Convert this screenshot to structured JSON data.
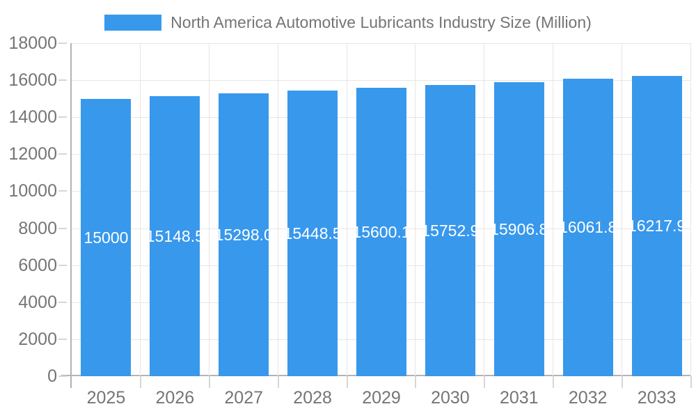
{
  "legend": {
    "label": "North America Automotive Lubricants Industry Size (Million)"
  },
  "chart_data": {
    "type": "bar",
    "title": "North America Automotive Lubricants Industry Size (Million)",
    "categories": [
      "2025",
      "2026",
      "2027",
      "2028",
      "2029",
      "2030",
      "2031",
      "2032",
      "2033"
    ],
    "values": [
      15000,
      15148.5,
      15298.0,
      15448.5,
      15600.1,
      15752.9,
      15906.8,
      16061.8,
      16217.9
    ],
    "value_labels": [
      "15000",
      "15148.5",
      "15298.0",
      "15448.5",
      "15600.1",
      "15752.9",
      "15906.8",
      "16061.8",
      "16217.9"
    ],
    "xlabel": "",
    "ylabel": "",
    "ylim": [
      0,
      18000
    ],
    "ytick_step": 2000,
    "ytick_labels": [
      "0",
      "2000",
      "4000",
      "6000",
      "8000",
      "10000",
      "12000",
      "14000",
      "16000",
      "18000"
    ],
    "grid": true,
    "legend_position": "top",
    "colors": {
      "bar": "#3898ec",
      "value_label": "#ffffff",
      "axis_text": "#757575",
      "gridline": "#e6e6e6",
      "axis_line": "#b3b3b3",
      "tick": "#d6d6d6"
    }
  }
}
